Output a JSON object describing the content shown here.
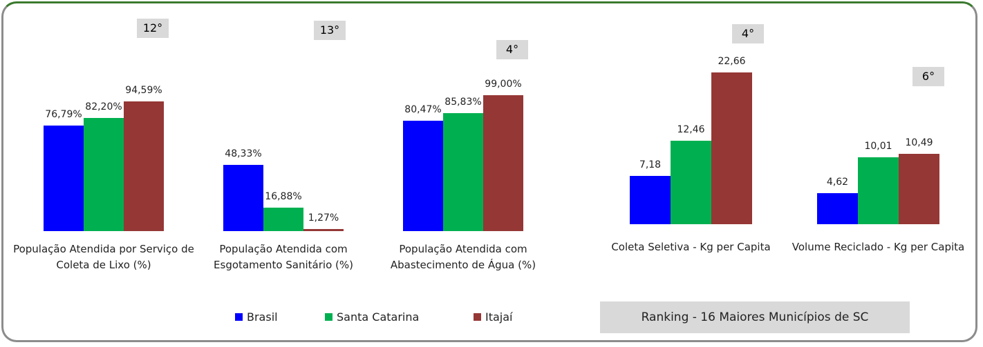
{
  "chart_data": [
    {
      "type": "bar",
      "categories": [
        "População Atendida por Serviço de Coleta de Lixo (%)",
        "População Atendida com Esgotamento Sanitário (%)",
        "População Atendida com Abastecimento de Água (%)"
      ],
      "rankings": [
        "12°",
        "13°",
        "4°"
      ],
      "series": [
        {
          "name": "Brasil",
          "color": "#0000ff",
          "values": [
            76.79,
            48.33,
            80.47
          ],
          "value_labels": [
            "76,79%",
            "48,33%",
            "80,47%"
          ]
        },
        {
          "name": "Santa Catarina",
          "color": "#00b050",
          "values": [
            82.2,
            16.88,
            85.83
          ],
          "value_labels": [
            "82,20%",
            "16,88%",
            "85,83%"
          ]
        },
        {
          "name": "Itajaí",
          "color": "#953735",
          "values": [
            94.59,
            1.27,
            99.0
          ],
          "value_labels": [
            "94,59%",
            "1,27%",
            "99,00%"
          ]
        }
      ]
    },
    {
      "type": "bar",
      "categories": [
        "Coleta Seletiva - Kg per Capita",
        "Volume Reciclado - Kg per Capita"
      ],
      "rankings": [
        "4°",
        "6°"
      ],
      "note": "Ranking - 16 Maiores Municípios de SC",
      "series": [
        {
          "color": "#0000ff",
          "values": [
            7.18,
            4.62
          ],
          "value_labels": [
            "7,18",
            "4,62"
          ]
        },
        {
          "color": "#00b050",
          "values": [
            12.46,
            10.01
          ],
          "value_labels": [
            "12,46",
            "10,01"
          ]
        },
        {
          "color": "#953735",
          "values": [
            22.66,
            10.49
          ],
          "value_labels": [
            "22,66",
            "10,49"
          ]
        }
      ]
    }
  ]
}
